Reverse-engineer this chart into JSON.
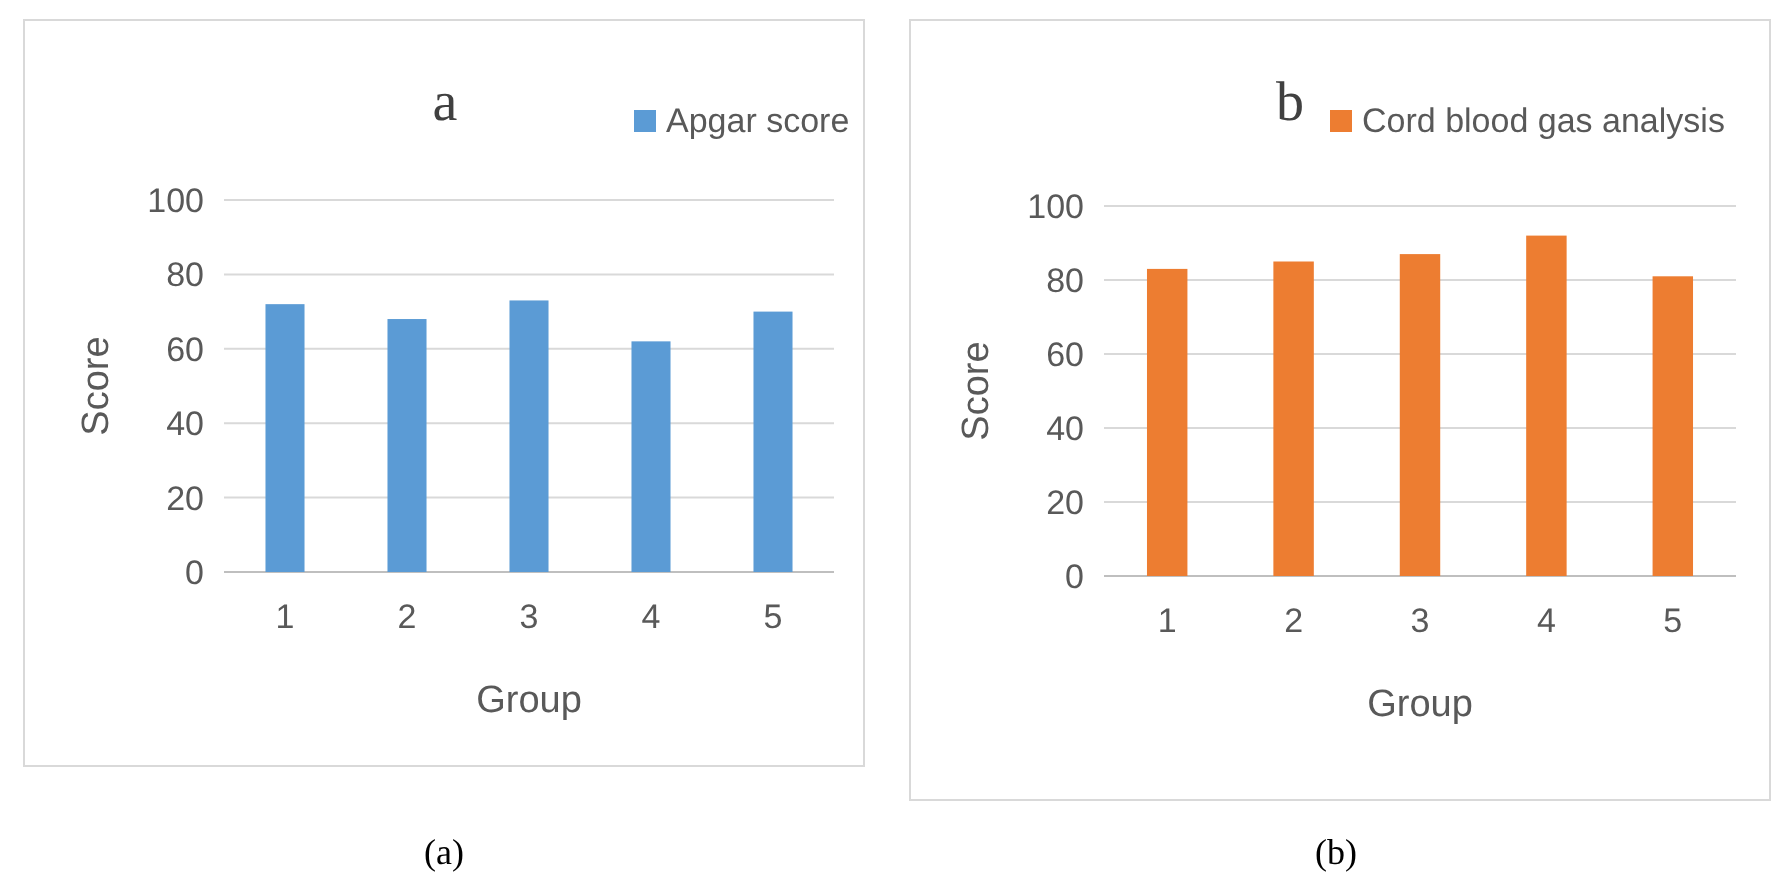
{
  "chart_data": [
    {
      "type": "bar",
      "title": "a",
      "xlabel": "Group",
      "ylabel": "Score",
      "categories": [
        "1",
        "2",
        "3",
        "4",
        "5"
      ],
      "series": [
        {
          "name": "Apgar score",
          "color": "#5b9bd5",
          "values": [
            72,
            68,
            73,
            62,
            70
          ]
        }
      ],
      "ylim": [
        0,
        100
      ],
      "yticks": [
        0,
        20,
        40,
        60,
        80,
        100
      ],
      "grid": "y",
      "legend": "top right",
      "annotations": [
        "(a)"
      ]
    },
    {
      "type": "bar",
      "title": "b",
      "xlabel": "Group",
      "ylabel": "Score",
      "categories": [
        "1",
        "2",
        "3",
        "4",
        "5"
      ],
      "series": [
        {
          "name": "Cord blood gas analysis",
          "color": "#ed7d31",
          "values": [
            83,
            85,
            87,
            92,
            81
          ]
        }
      ],
      "ylim": [
        0,
        100
      ],
      "yticks": [
        0,
        20,
        40,
        60,
        80,
        100
      ],
      "grid": "y",
      "legend": "top right",
      "annotations": [
        "(b)"
      ]
    }
  ]
}
